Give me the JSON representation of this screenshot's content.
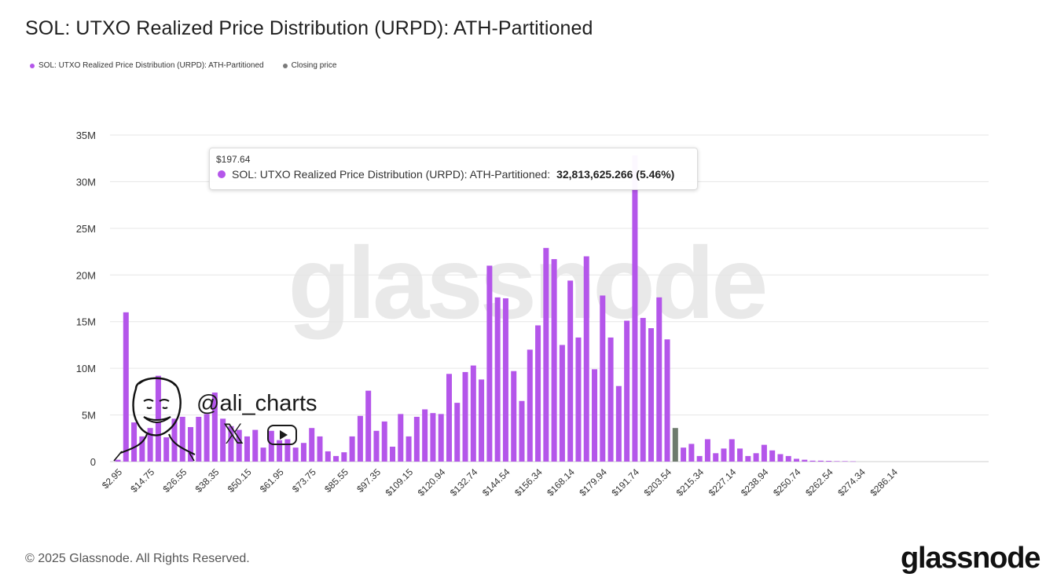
{
  "title": "SOL: UTXO Realized Price Distribution (URPD): ATH-Partitioned",
  "legend": [
    {
      "label": "SOL: UTXO Realized Price Distribution (URPD): ATH-Partitioned",
      "color": "#b456ea"
    },
    {
      "label": "Closing price",
      "color": "#7a7a7a"
    }
  ],
  "tooltip": {
    "x_label": "$197.64",
    "series_label": "SOL: UTXO Realized Price Distribution (URPD): ATH-Partitioned:",
    "value_label": "32,813,625.266 (5.46%)"
  },
  "watermark": "glassnode",
  "overlay": {
    "handle": "@ali_charts",
    "x_glyph": "𝕏"
  },
  "footer": {
    "copyright": "© 2025 Glassnode. All Rights Reserved.",
    "brand": "glassnode"
  },
  "colors": {
    "bar": "#b456ea",
    "closing_bar": "#6e7b6e",
    "grid": "#e6e6e6",
    "axis_text": "#333333"
  },
  "chart_data": {
    "type": "bar",
    "title": "SOL: UTXO Realized Price Distribution (URPD): ATH-Partitioned",
    "xlabel": "",
    "ylabel": "",
    "y_ticks": [
      "0",
      "5M",
      "10M",
      "15M",
      "20M",
      "25M",
      "30M",
      "35M"
    ],
    "ylim": [
      0,
      35000000
    ],
    "grid": true,
    "legend_position": "top-left",
    "x_tick_labels": [
      "$2.95",
      "$14.75",
      "$26.55",
      "$38.35",
      "$50.15",
      "$61.95",
      "$73.75",
      "$85.55",
      "$97.35",
      "$109.15",
      "$120.94",
      "$132.74",
      "$144.54",
      "$156.34",
      "$168.14",
      "$179.94",
      "$191.74",
      "$203.54",
      "$215.34",
      "$227.14",
      "$238.94",
      "$250.74",
      "$262.54",
      "$274.34",
      "$286.14"
    ],
    "bin_width": 2.95,
    "first_bin": 2.95,
    "closing_price_bin_index": 69,
    "series": [
      {
        "name": "SOL: UTXO Realized Price Distribution (URPD): ATH-Partitioned",
        "values": [
          200000,
          16000000,
          4200000,
          2700000,
          3600000,
          9200000,
          2600000,
          4600000,
          4800000,
          3700000,
          4800000,
          5100000,
          7400000,
          4600000,
          3800000,
          3400000,
          2700000,
          3400000,
          1500000,
          3300000,
          2300000,
          2400000,
          1500000,
          2000000,
          3600000,
          2700000,
          1100000,
          600000,
          1000000,
          2700000,
          4900000,
          7600000,
          3300000,
          4300000,
          1600000,
          5100000,
          2700000,
          4800000,
          5600000,
          5200000,
          5100000,
          9400000,
          6300000,
          9600000,
          10300000,
          8800000,
          21000000,
          17600000,
          17500000,
          9700000,
          6500000,
          12000000,
          14600000,
          22900000,
          21700000,
          12500000,
          19400000,
          13300000,
          22000000,
          9900000,
          17800000,
          13300000,
          8100000,
          15100000,
          32813625,
          15400000,
          14300000,
          17600000,
          13100000,
          3600000,
          1500000,
          1900000,
          600000,
          2400000,
          900000,
          1400000,
          2400000,
          1400000,
          600000,
          900000,
          1800000,
          1200000,
          800000,
          600000,
          300000,
          200000,
          100000,
          100000,
          80000,
          50000,
          50000,
          30000
        ]
      }
    ]
  }
}
